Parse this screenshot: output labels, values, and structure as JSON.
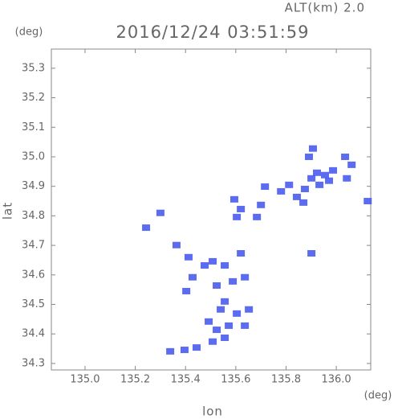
{
  "chart_data": {
    "type": "scatter",
    "title": "2016/12/24 03:51:59",
    "annotation": "ALT(km) 2.0",
    "xlabel": "lon",
    "ylabel": "lat",
    "x_unit": "(deg)",
    "y_unit": "(deg)",
    "color": "#4a5cf0",
    "xlim": [
      134.866,
      136.137
    ],
    "ylim": [
      34.278,
      35.365
    ],
    "xticks": [
      {
        "value": 135,
        "label": "135.0"
      },
      135.2,
      135.4,
      135.6,
      135.8,
      {
        "value": 136,
        "label": "136.0"
      }
    ],
    "yticks": [
      34.3,
      34.4,
      34.5,
      34.6,
      34.7,
      34.8,
      34.9,
      {
        "value": 35,
        "label": "35.0"
      },
      35.1,
      35.2,
      35.3
    ],
    "x": [
      135.907,
      135.891,
      135.955,
      135.971,
      135.933,
      135.923,
      135.987,
      135.901,
      135.875,
      135.78,
      135.812,
      135.843,
      135.869,
      136.035,
      136.061,
      136.042,
      136.125,
      135.716,
      135.7,
      135.684,
      135.604,
      135.62,
      135.594,
      135.901,
      135.3,
      135.243,
      135.364,
      135.412,
      135.428,
      135.403,
      135.476,
      135.508,
      135.556,
      135.62,
      135.636,
      135.588,
      135.524,
      135.556,
      135.604,
      135.652,
      135.54,
      135.492,
      135.524,
      135.572,
      135.636,
      135.508,
      135.556,
      135.444,
      135.396,
      135.339
    ],
    "y": [
      35.028,
      35.0,
      34.938,
      34.919,
      34.905,
      34.946,
      34.954,
      34.927,
      34.891,
      34.883,
      34.905,
      34.864,
      34.845,
      35.0,
      34.973,
      34.927,
      34.85,
      34.899,
      34.837,
      34.796,
      34.796,
      34.823,
      34.856,
      34.673,
      34.81,
      34.76,
      34.701,
      34.66,
      34.592,
      34.545,
      34.632,
      34.646,
      34.632,
      34.673,
      34.592,
      34.578,
      34.564,
      34.51,
      34.469,
      34.483,
      34.483,
      34.442,
      34.414,
      34.428,
      34.428,
      34.374,
      34.387,
      34.354,
      34.346,
      34.341
    ]
  }
}
